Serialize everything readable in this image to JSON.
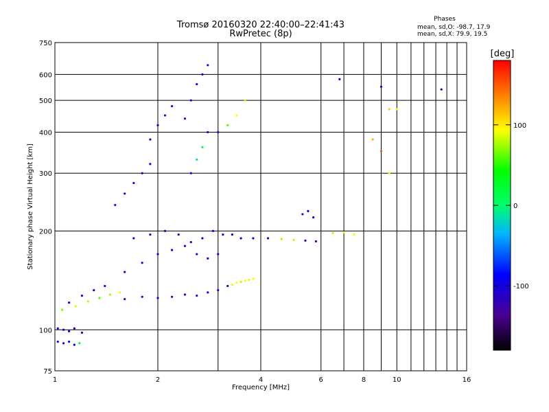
{
  "header": {
    "title_line1": "Tromsø 20160320 22:40:00–22:41:43",
    "title_line2": "RwPretec (8p)",
    "stats_title": "Phases",
    "stats_line1": "mean, sd,O: -98.7, 17.9",
    "stats_line2": "mean, sd,X:  79.9, 19.5"
  },
  "colorbar": {
    "unit_label": "[deg]",
    "range": [
      -180,
      180
    ],
    "tick_labels": [
      "100",
      "0",
      "-100"
    ],
    "tick_values": [
      100,
      0,
      -100
    ]
  },
  "chart_data": {
    "type": "scatter",
    "xlabel": "Frequency [MHz]",
    "ylabel": "Stationary phase Virtual Height [km]",
    "xscale": "log2",
    "yscale": "log",
    "xlim": [
      1,
      16
    ],
    "ylim": [
      75,
      750
    ],
    "x_ticks": [
      1,
      2,
      4,
      6,
      8,
      10,
      16
    ],
    "x_tick_labels": [
      "1",
      "2",
      "4",
      "6",
      "8",
      "10",
      "16"
    ],
    "y_ticks": [
      75,
      100,
      200,
      300,
      400,
      500,
      600,
      750
    ],
    "y_tick_labels": [
      "75",
      "100",
      "200",
      "300",
      "400",
      "500",
      "600",
      "750"
    ],
    "x_grid": [
      1,
      2,
      3,
      4,
      6,
      7,
      8,
      9,
      10,
      11,
      12,
      13,
      14,
      15
    ],
    "y_grid": [
      100,
      200,
      300,
      400,
      500,
      600
    ],
    "color_encoding": "phase [deg]",
    "series": [
      {
        "x": [
          1.02,
          1.06,
          1.1,
          1.14,
          1.18
        ],
        "y": [
          92,
          91,
          92,
          90,
          91
        ],
        "phase": [
          -95,
          -100,
          -90,
          -85,
          20
        ]
      },
      {
        "x": [
          1.02,
          1.06,
          1.1,
          1.14,
          1.2
        ],
        "y": [
          101,
          100,
          99,
          101,
          98
        ],
        "phase": [
          -100,
          -95,
          -90,
          -100,
          -105
        ]
      },
      {
        "x": [
          1.05,
          1.15,
          1.25,
          1.35,
          1.45,
          1.55
        ],
        "y": [
          115,
          118,
          122,
          125,
          128,
          130
        ],
        "phase": [
          70,
          85,
          80,
          60,
          75,
          90
        ]
      },
      {
        "x": [
          1.1,
          1.2,
          1.3,
          1.4
        ],
        "y": [
          121,
          127,
          132,
          136
        ],
        "phase": [
          -95,
          -100,
          -90,
          -85
        ]
      },
      {
        "x": [
          1.6,
          1.8,
          2.0,
          2.2,
          2.4,
          2.6,
          2.8,
          3.0,
          3.2
        ],
        "y": [
          124,
          126,
          125,
          126,
          128,
          127,
          130,
          132,
          136
        ],
        "phase": [
          -110,
          -105,
          -100,
          -95,
          -100,
          -105,
          -95,
          -100,
          -110
        ]
      },
      {
        "x": [
          1.6,
          1.8,
          2.0,
          2.2,
          2.4,
          2.6,
          2.8,
          3.0
        ],
        "y": [
          150,
          160,
          170,
          175,
          180,
          170,
          165,
          170
        ],
        "phase": [
          -105,
          -100,
          -95,
          -90,
          -110,
          -100,
          -95,
          -105
        ]
      },
      {
        "x": [
          1.7,
          1.9,
          2.1,
          2.3,
          2.5,
          2.7,
          2.9,
          3.1,
          3.3
        ],
        "y": [
          190,
          195,
          200,
          195,
          185,
          190,
          200,
          195,
          195
        ],
        "phase": [
          -100,
          -95,
          -105,
          -110,
          -100,
          -95,
          -90,
          -100,
          -105
        ]
      },
      {
        "x": [
          1.5,
          1.6,
          1.7,
          1.8,
          1.9
        ],
        "y": [
          240,
          260,
          280,
          300,
          320
        ],
        "phase": [
          -95,
          -100,
          -105,
          -100,
          -90
        ]
      },
      {
        "x": [
          1.9,
          2.0,
          2.1,
          2.2
        ],
        "y": [
          380,
          420,
          450,
          480
        ],
        "phase": [
          -110,
          -105,
          -100,
          -95
        ]
      },
      {
        "x": [
          2.4,
          2.5,
          2.6,
          2.7,
          2.8
        ],
        "y": [
          440,
          500,
          560,
          600,
          640
        ],
        "phase": [
          -105,
          -100,
          -95,
          -90,
          -100
        ]
      },
      {
        "x": [
          2.5,
          2.6,
          2.7,
          2.8
        ],
        "y": [
          300,
          330,
          360,
          400
        ],
        "phase": [
          -90,
          -20,
          10,
          -100
        ]
      },
      {
        "x": [
          3.0,
          3.2,
          3.4,
          3.6
        ],
        "y": [
          400,
          420,
          450,
          500
        ],
        "phase": [
          -100,
          60,
          90,
          80
        ]
      },
      {
        "x": [
          3.3,
          3.4,
          3.5,
          3.6,
          3.7,
          3.8
        ],
        "y": [
          137,
          139,
          140,
          141,
          142,
          143
        ],
        "phase": [
          85,
          90,
          80,
          95,
          88,
          92
        ]
      },
      {
        "x": [
          3.5,
          3.8,
          4.2,
          4.6,
          5.0,
          5.4,
          5.8
        ],
        "y": [
          190,
          190,
          190,
          189,
          188,
          187,
          186
        ],
        "phase": [
          -95,
          -100,
          -100,
          75,
          80,
          -105,
          -100
        ]
      },
      {
        "x": [
          5.3,
          5.5,
          5.7
        ],
        "y": [
          225,
          230,
          220
        ],
        "phase": [
          -110,
          -105,
          -100
        ]
      },
      {
        "x": [
          6.5,
          7.0,
          7.5
        ],
        "y": [
          197,
          198,
          195
        ],
        "phase": [
          80,
          85,
          90
        ]
      },
      {
        "x": [
          8.5,
          9.0,
          9.5
        ],
        "y": [
          380,
          350,
          300
        ],
        "phase": [
          120,
          150,
          100
        ]
      },
      {
        "x": [
          6.8,
          9.0,
          13.5
        ],
        "y": [
          580,
          550,
          540
        ],
        "phase": [
          -90,
          -100,
          -120
        ]
      },
      {
        "x": [
          9.5,
          10.0
        ],
        "y": [
          470,
          470
        ],
        "phase": [
          110,
          95
        ]
      }
    ]
  }
}
